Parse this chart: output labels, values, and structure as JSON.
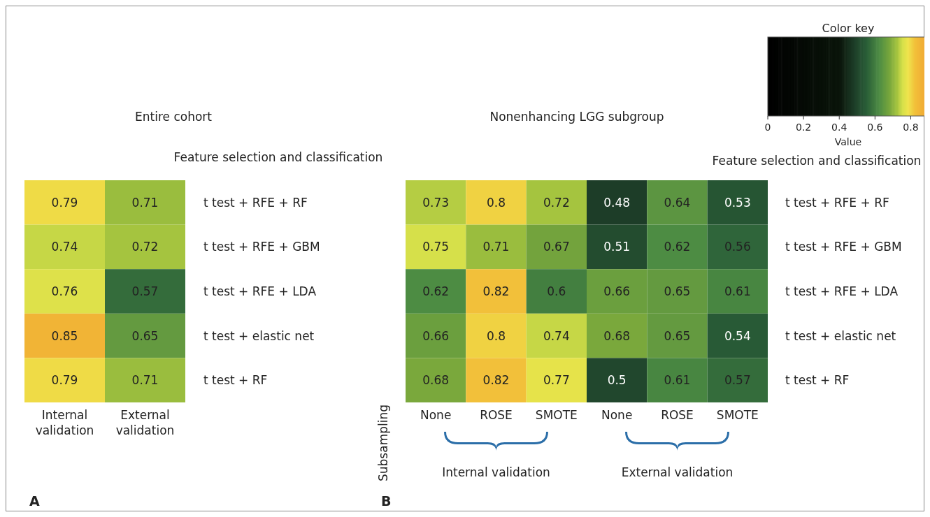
{
  "chart_data": [
    {
      "type": "heatmap",
      "title": "Entire cohort",
      "ylabel": "Feature selection and classification",
      "categories": [
        "Internal validation",
        "External validation"
      ],
      "y_categories": [
        "t test + RFE + RF",
        "t test + RFE + GBM",
        "t test + RFE + LDA",
        "t test + elastic net",
        "t test + RF"
      ],
      "cells": [
        [
          0.79,
          0.71
        ],
        [
          0.74,
          0.72
        ],
        [
          0.76,
          0.57
        ],
        [
          0.85,
          0.65
        ],
        [
          0.79,
          0.71
        ]
      ],
      "data_labels": true,
      "annotations": [
        "A"
      ]
    },
    {
      "type": "heatmap",
      "title": "Nonenhancing LGG subgroup",
      "ylabel": "Feature selection and classification",
      "categories": [
        "None",
        "ROSE",
        "SMOTE",
        "None",
        "ROSE",
        "SMOTE"
      ],
      "y_categories": [
        "t test + RFE + RF",
        "t test + RFE + GBM",
        "t test + RFE + LDA",
        "t test + elastic net",
        "t test + RF"
      ],
      "cells": [
        [
          0.73,
          0.8,
          0.72,
          0.48,
          0.64,
          0.53
        ],
        [
          0.75,
          0.71,
          0.67,
          0.51,
          0.62,
          0.56
        ],
        [
          0.62,
          0.82,
          0.6,
          0.66,
          0.65,
          0.61
        ],
        [
          0.66,
          0.8,
          0.74,
          0.68,
          0.65,
          0.54
        ],
        [
          0.68,
          0.82,
          0.77,
          0.5,
          0.61,
          0.57
        ]
      ],
      "data_labels": true,
      "legend_title": "Color key",
      "clabel": "Value",
      "clim": [
        0,
        0.9
      ],
      "cticks": [
        0,
        0.2,
        0.4,
        0.6,
        0.8
      ],
      "annotations": [
        "Subsampling",
        "Internal validation",
        "External validation",
        "B"
      ]
    }
  ]
}
